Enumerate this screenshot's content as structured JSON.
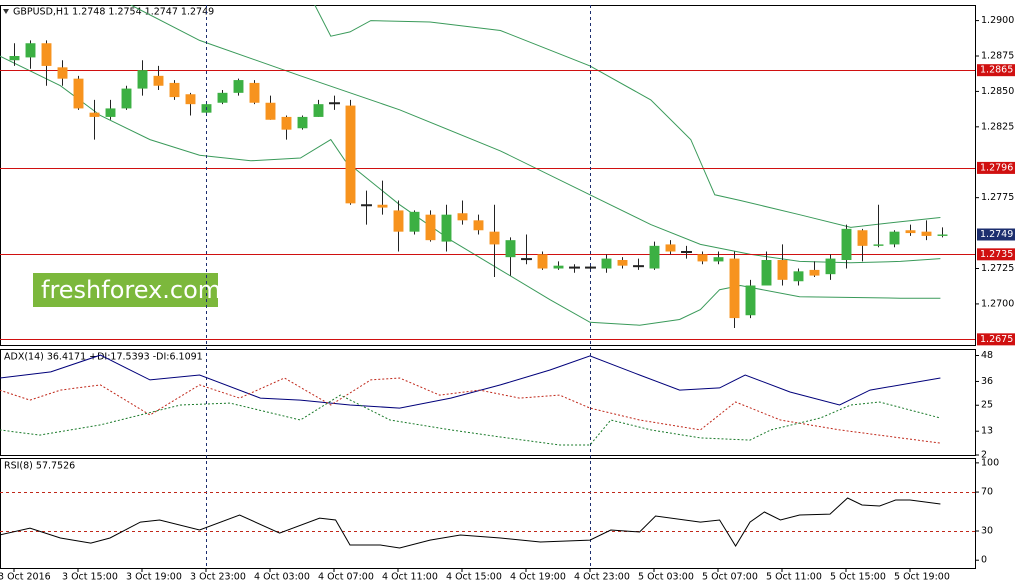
{
  "chart_data": [
    {
      "type": "candlestick",
      "title": "GBPUSD,H1  1.2748 1.2754 1.2747 1.2749",
      "watermark": "freshforex.com",
      "x": [
        0,
        1,
        2,
        3,
        4,
        5,
        6,
        7,
        8,
        9,
        10,
        11,
        12,
        13,
        14,
        15,
        16,
        17,
        18,
        19,
        20,
        21,
        22,
        23,
        24,
        25,
        26,
        27,
        28,
        29,
        30,
        31,
        32,
        33,
        34,
        35,
        36,
        37,
        38,
        39,
        40,
        41,
        42,
        43,
        44,
        45,
        46,
        47,
        48,
        49,
        50,
        51,
        52,
        53,
        54,
        55,
        56,
        57,
        58
      ],
      "open": [
        1.2872,
        1.2874,
        1.2884,
        1.2867,
        1.2859,
        1.2835,
        1.2832,
        1.2838,
        1.2852,
        1.2861,
        1.2856,
        1.2848,
        1.2835,
        1.2842,
        1.2849,
        1.2856,
        1.2842,
        1.2832,
        1.2824,
        1.2832,
        1.2842,
        1.284,
        1.277,
        1.277,
        1.2766,
        1.2751,
        1.2763,
        1.2744,
        1.2764,
        1.2759,
        1.2751,
        1.2733,
        1.2732,
        1.2735,
        1.2725,
        1.2726,
        1.2726,
        1.2725,
        1.2731,
        1.2727,
        1.2725,
        1.2742,
        1.2737,
        1.2735,
        1.273,
        1.2732,
        1.2692,
        1.2713,
        1.2731,
        1.2716,
        1.2724,
        1.2721,
        1.2731,
        1.2752,
        1.2741,
        1.2742,
        1.2752,
        1.2751,
        1.2748
      ],
      "high": [
        1.2884,
        1.2886,
        1.2886,
        1.2872,
        1.2861,
        1.2844,
        1.2844,
        1.2854,
        1.2872,
        1.2868,
        1.2858,
        1.2849,
        1.2842,
        1.2851,
        1.2859,
        1.2858,
        1.2847,
        1.2833,
        1.2833,
        1.2844,
        1.2847,
        1.2844,
        1.278,
        1.2787,
        1.2773,
        1.2766,
        1.2766,
        1.277,
        1.2773,
        1.2763,
        1.277,
        1.2747,
        1.2749,
        1.2737,
        1.273,
        1.2728,
        1.2728,
        1.2735,
        1.2733,
        1.2732,
        1.2744,
        1.2745,
        1.2741,
        1.2737,
        1.2737,
        1.2737,
        1.2717,
        1.2737,
        1.2742,
        1.2725,
        1.273,
        1.2735,
        1.2756,
        1.2753,
        1.277,
        1.2752,
        1.2756,
        1.2759,
        1.2754
      ],
      "low": [
        1.2868,
        1.2866,
        1.2854,
        1.2854,
        1.2837,
        1.2816,
        1.283,
        1.2837,
        1.2847,
        1.2851,
        1.2844,
        1.2833,
        1.2833,
        1.2841,
        1.2847,
        1.2841,
        1.283,
        1.2816,
        1.2823,
        1.2832,
        1.2837,
        1.277,
        1.2756,
        1.2763,
        1.2737,
        1.2749,
        1.2744,
        1.2737,
        1.2756,
        1.2749,
        1.2719,
        1.272,
        1.2728,
        1.2724,
        1.2724,
        1.2722,
        1.2723,
        1.2722,
        1.2725,
        1.2724,
        1.2724,
        1.2735,
        1.2732,
        1.2728,
        1.2728,
        1.2683,
        1.269,
        1.2713,
        1.2713,
        1.2713,
        1.2719,
        1.2717,
        1.2725,
        1.273,
        1.274,
        1.274,
        1.2748,
        1.2745,
        1.2747
      ],
      "close": [
        1.2875,
        1.2884,
        1.2868,
        1.2859,
        1.2838,
        1.2832,
        1.2838,
        1.2852,
        1.2865,
        1.2854,
        1.2846,
        1.2841,
        1.2841,
        1.2849,
        1.2858,
        1.2842,
        1.283,
        1.2823,
        1.2832,
        1.2841,
        1.2842,
        1.2771,
        1.277,
        1.2768,
        1.2751,
        1.2765,
        1.2745,
        1.2763,
        1.2759,
        1.2752,
        1.2742,
        1.2745,
        1.2732,
        1.2725,
        1.2727,
        1.2726,
        1.2726,
        1.2732,
        1.2727,
        1.2727,
        1.2741,
        1.2737,
        1.2737,
        1.273,
        1.2733,
        1.269,
        1.2713,
        1.2731,
        1.2717,
        1.2723,
        1.272,
        1.2732,
        1.2753,
        1.2741,
        1.2742,
        1.2751,
        1.275,
        1.2748,
        1.2749
      ],
      "bull_color": "#3cb043",
      "bear_color": "#f7931e",
      "wick_color": "#222222",
      "series": [
        {
          "color": "#3a9a5a",
          "x": [
            18.8,
            19.8,
            21,
            22.3,
            26,
            30.4,
            36,
            39.8,
            42.3,
            43.8,
            45.4,
            49.1,
            52.3,
            55.4,
            57.9
          ],
          "values": [
            1.2911,
            1.2889,
            1.2892,
            1.29,
            1.2899,
            1.2893,
            1.2868,
            1.2844,
            1.2816,
            1.2777,
            1.2773,
            1.2763,
            1.2754,
            1.2758,
            1.2761
          ]
        },
        {
          "color": "#3a9a5a",
          "x": [
            7.3,
            11.6,
            17.9,
            24.1,
            30.4,
            36,
            39.8,
            42.9,
            46,
            49.1,
            52.3,
            55.4,
            57.9
          ],
          "values": [
            1.2911,
            1.2886,
            1.2861,
            1.2837,
            1.2808,
            1.2777,
            1.2756,
            1.2742,
            1.2735,
            1.273,
            1.2729,
            1.273,
            1.2732
          ]
        },
        {
          "color": "#3a9a5a",
          "x": [
            -0.9,
            2.9,
            5.4,
            8.5,
            11.6,
            14.8,
            17.9,
            19.8,
            20.7,
            24.1,
            27.3,
            30.4,
            33.5,
            36,
            39.1,
            41.6,
            42.9,
            44.1,
            45.4,
            49.1,
            55.4,
            57.9
          ],
          "values": [
            1.2875,
            1.2854,
            1.2833,
            1.2816,
            1.2805,
            1.2801,
            1.2803,
            1.2816,
            1.2801,
            1.277,
            1.2745,
            1.2724,
            1.2703,
            1.2687,
            1.2685,
            1.2689,
            1.2696,
            1.271,
            1.2713,
            1.2705,
            1.2704,
            1.2704
          ]
        }
      ],
      "hlines": [
        {
          "value": 1.2865,
          "label": "1.2865"
        },
        {
          "value": 1.2796,
          "label": "1.2796"
        },
        {
          "value": 1.2735,
          "label": "1.2735"
        },
        {
          "value": 1.2675,
          "label": "1.2675"
        }
      ],
      "hline_color": "#d01010",
      "last_price": {
        "value": 1.2749,
        "label": "1.2749"
      },
      "last_price_color": "#1c2e6e",
      "separators": [
        12,
        36
      ],
      "xlim": [
        -0.875,
        60.0625
      ],
      "ylim": [
        1.2671,
        1.2911
      ],
      "yticks": [
        {
          "value": 1.29,
          "label": "1.2900"
        },
        {
          "value": 1.2875,
          "label": "1.2875"
        },
        {
          "value": 1.285,
          "label": "1.2850"
        },
        {
          "value": 1.2825,
          "label": "1.2825"
        },
        {
          "value": 1.2775,
          "label": "1.2775"
        },
        {
          "value": 1.2725,
          "label": "1.2725"
        },
        {
          "value": 1.27,
          "label": "1.2700"
        }
      ],
      "xticks": [
        {
          "value": 0,
          "label": "3 Oct 2016"
        },
        {
          "value": 4,
          "label": "3 Oct 15:00"
        },
        {
          "value": 8,
          "label": "3 Oct 19:00"
        },
        {
          "value": 12,
          "label": "3 Oct 23:00"
        },
        {
          "value": 16,
          "label": "4 Oct 03:00"
        },
        {
          "value": 20,
          "label": "4 Oct 07:00"
        },
        {
          "value": 24,
          "label": "4 Oct 11:00"
        },
        {
          "value": 28,
          "label": "4 Oct 15:00"
        },
        {
          "value": 32,
          "label": "4 Oct 19:00"
        },
        {
          "value": 36,
          "label": "4 Oct 23:00"
        },
        {
          "value": 40,
          "label": "5 Oct 03:00"
        },
        {
          "value": 44,
          "label": "5 Oct 07:00"
        },
        {
          "value": 48,
          "label": "5 Oct 11:00"
        },
        {
          "value": 52,
          "label": "5 Oct 15:00"
        },
        {
          "value": 56,
          "label": "5 Oct 19:00"
        }
      ]
    },
    {
      "type": "line",
      "title": "ADX(14) 36.4171 +DI:17.5393 -DI:6.1091",
      "series": [
        {
          "color": "#00007a",
          "style": "solid",
          "x": [
            -0.9,
            2.3,
            5.4,
            8.5,
            11.6,
            15.4,
            17.9,
            21,
            24.1,
            27.3,
            30.4,
            33.5,
            36,
            39.1,
            41.6,
            44.1,
            45.7,
            48.5,
            51.6,
            53.5,
            57.9
          ],
          "values": [
            37.6,
            40.4,
            48.2,
            36.7,
            39,
            28.3,
            27.4,
            25.1,
            23.7,
            28.3,
            34.4,
            41.3,
            47.8,
            39,
            32,
            33,
            39,
            31.1,
            25.1,
            32,
            37.6
          ]
        },
        {
          "color": "#c0281a",
          "style": "dotted",
          "x": [
            -0.9,
            1,
            2.9,
            5.4,
            8.5,
            11.6,
            14.1,
            16.9,
            19.8,
            22.3,
            24.1,
            26.6,
            29.1,
            31.6,
            34.1,
            36,
            39.1,
            42.9,
            45.1,
            47.9,
            51.6,
            55.4,
            57.9
          ],
          "values": [
            32,
            27.4,
            32,
            34.4,
            20.5,
            34.4,
            28.3,
            37.6,
            25.1,
            36.7,
            37.6,
            29.7,
            32,
            28.3,
            29.7,
            23.7,
            18.2,
            13.6,
            26.5,
            18.2,
            13.6,
            9.9,
            7.5
          ]
        },
        {
          "color": "#1a7a2a",
          "style": "dotted",
          "x": [
            -0.9,
            1.6,
            5.4,
            10.4,
            13.5,
            17.9,
            20.4,
            23.5,
            27.3,
            30.4,
            34.1,
            36,
            37.3,
            39.8,
            42.9,
            46,
            47.3,
            50.4,
            52.3,
            54.1,
            57.9
          ],
          "values": [
            13.6,
            11.2,
            15.9,
            25.1,
            26,
            18.2,
            29.7,
            18.2,
            13.6,
            10.3,
            6.6,
            6.6,
            18.2,
            13.6,
            9.9,
            8.9,
            13.6,
            19.1,
            25.1,
            26.5,
            19.1
          ]
        }
      ],
      "xlim": [
        -0.875,
        60.0625
      ],
      "ylim": [
        2,
        51
      ],
      "yticks": [
        48,
        36,
        25,
        13,
        2
      ]
    },
    {
      "type": "line",
      "title": "RSI(8) 57.7526",
      "series": [
        {
          "color": "#000000",
          "style": "solid",
          "x": [
            -0.9,
            1,
            2.9,
            4.8,
            6,
            7.9,
            9.1,
            11.6,
            14.1,
            16.6,
            19.1,
            20.1,
            21,
            22.9,
            24.1,
            26,
            27.9,
            30.4,
            32.9,
            36,
            37.3,
            39.1,
            40.1,
            42.9,
            44.1,
            45.1,
            46,
            46.9,
            47.9,
            49.1,
            51,
            52.1,
            53,
            54.1,
            55.1,
            56,
            57.9
          ],
          "values": [
            25.9,
            33,
            22.8,
            17.6,
            22.8,
            39.2,
            41.3,
            31,
            46.4,
            27.9,
            43.3,
            41.3,
            15.6,
            15.6,
            12.5,
            20.7,
            25.9,
            22.8,
            18.7,
            20.7,
            31,
            29,
            45.4,
            39.2,
            41.3,
            14.6,
            39.2,
            49.5,
            41.3,
            46.4,
            47.4,
            63.9,
            56.7,
            55.7,
            61.9,
            61.9,
            57.7
          ]
        }
      ],
      "levels": [
        70,
        30
      ],
      "level_color": "#c0281a",
      "xlim": [
        -0.875,
        60.0625
      ],
      "ylim": [
        -8,
        105
      ],
      "yticks": [
        100,
        70,
        30,
        0
      ]
    }
  ]
}
